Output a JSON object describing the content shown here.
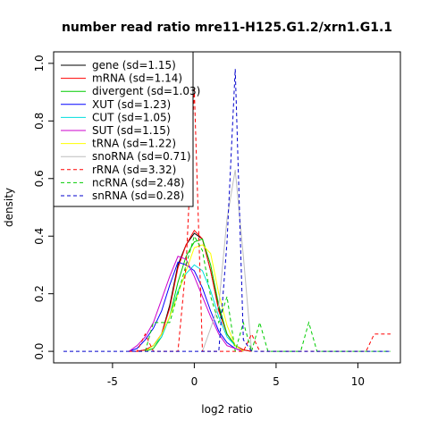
{
  "chart_data": {
    "type": "line",
    "title": "number read ratio mre11-H125.G1.2/xrn1.G1.1",
    "xlabel": "log2 ratio",
    "ylabel": "density",
    "xlim": [
      -8.6,
      12.6
    ],
    "ylim": [
      -0.04,
      1.04
    ],
    "x_ticks": [
      -5,
      0,
      5,
      10
    ],
    "x_tick_labels": [
      "-5",
      "0",
      "5",
      "10"
    ],
    "y_ticks": [
      0.0,
      0.2,
      0.4,
      0.6,
      0.8,
      1.0
    ],
    "y_tick_labels": [
      "0.0",
      "0.2",
      "0.4",
      "0.6",
      "0.8",
      "1.0"
    ],
    "grid": false,
    "legend_position": "top-left",
    "series": [
      {
        "name": "gene (sd=1.15)",
        "color": "#000000",
        "dash": "solid",
        "x": [
          -3.5,
          -3,
          -2.5,
          -2,
          -1.5,
          -1,
          -0.5,
          0,
          0.5,
          1,
          1.5,
          2,
          2.5,
          3,
          3.5
        ],
        "y": [
          0,
          0.005,
          0.02,
          0.06,
          0.16,
          0.3,
          0.37,
          0.41,
          0.39,
          0.28,
          0.15,
          0.06,
          0.02,
          0.005,
          0
        ]
      },
      {
        "name": "mRNA (sd=1.14)",
        "color": "#ff0000",
        "dash": "solid",
        "x": [
          -3.5,
          -3,
          -2.5,
          -2,
          -1.5,
          -1,
          -0.5,
          0,
          0.5,
          1,
          1.5,
          2,
          2.5,
          3,
          3.5
        ],
        "y": [
          0,
          0.005,
          0.02,
          0.06,
          0.15,
          0.29,
          0.37,
          0.42,
          0.39,
          0.28,
          0.14,
          0.06,
          0.02,
          0.005,
          0
        ]
      },
      {
        "name": "divergent (sd=1.03)",
        "color": "#00cc00",
        "dash": "solid",
        "x": [
          -3,
          -2.5,
          -2,
          -1.5,
          -1,
          -0.5,
          0,
          0.5,
          1,
          1.5,
          2,
          2.5,
          3
        ],
        "y": [
          0,
          0.01,
          0.05,
          0.12,
          0.24,
          0.33,
          0.38,
          0.39,
          0.3,
          0.16,
          0.06,
          0.02,
          0
        ]
      },
      {
        "name": "XUT (sd=1.23)",
        "color": "#0000ff",
        "dash": "solid",
        "x": [
          -4,
          -3.5,
          -3,
          -2.5,
          -2,
          -1.5,
          -1,
          -0.5,
          0,
          0.5,
          1,
          1.5,
          2,
          2.5,
          3
        ],
        "y": [
          0,
          0.01,
          0.04,
          0.08,
          0.14,
          0.23,
          0.31,
          0.3,
          0.28,
          0.22,
          0.14,
          0.07,
          0.03,
          0.01,
          0
        ]
      },
      {
        "name": "CUT (sd=1.05)",
        "color": "#00dddd",
        "dash": "solid",
        "x": [
          -3,
          -2.5,
          -2,
          -1.5,
          -1,
          -0.5,
          0,
          0.5,
          1,
          1.5,
          2,
          2.5,
          3
        ],
        "y": [
          0,
          0.02,
          0.05,
          0.12,
          0.21,
          0.27,
          0.3,
          0.28,
          0.21,
          0.12,
          0.05,
          0.02,
          0
        ]
      },
      {
        "name": "SUT (sd=1.15)",
        "color": "#cc00cc",
        "dash": "solid",
        "x": [
          -4,
          -3.5,
          -3,
          -2.5,
          -2,
          -1.5,
          -1,
          -0.5,
          0,
          0.5,
          1,
          1.5,
          2,
          2.5,
          3
        ],
        "y": [
          0,
          0.02,
          0.05,
          0.1,
          0.18,
          0.26,
          0.33,
          0.32,
          0.26,
          0.19,
          0.12,
          0.06,
          0.02,
          0.01,
          0
        ]
      },
      {
        "name": "tRNA (sd=1.22)",
        "color": "#ffff00",
        "dash": "solid",
        "x": [
          -3,
          -2.5,
          -2,
          -1.5,
          -1,
          -0.5,
          0,
          0.5,
          1,
          1.5,
          2,
          2.5,
          3
        ],
        "y": [
          0,
          0.02,
          0.06,
          0.12,
          0.2,
          0.28,
          0.36,
          0.37,
          0.34,
          0.2,
          0.09,
          0.02,
          0
        ]
      },
      {
        "name": "snoRNA (sd=0.71)",
        "color": "#bebebe",
        "dash": "solid",
        "x": [
          0.5,
          1,
          1.5,
          2,
          2.5,
          3,
          3.5
        ],
        "y": [
          0,
          0.08,
          0.16,
          0.46,
          0.63,
          0.33,
          0
        ]
      },
      {
        "name": "rRNA (sd=3.32)",
        "color": "#ff0000",
        "dash": "dashed",
        "x": [
          -4,
          -3.5,
          -3,
          -2.5,
          -2,
          -1.5,
          -1,
          -0.5,
          0,
          0.5,
          1,
          1.5,
          2,
          2.5,
          3,
          3.5,
          4,
          4.5,
          5,
          5.5,
          6,
          6.5,
          7,
          7.5,
          8,
          8.5,
          9,
          9.5,
          10,
          10.5,
          11,
          11.5,
          12
        ],
        "y": [
          0,
          0,
          0.06,
          0,
          0,
          0,
          0,
          0.3,
          0.91,
          0,
          0,
          0,
          0,
          0,
          0,
          0.06,
          0,
          0,
          0,
          0,
          0,
          0,
          0,
          0,
          0,
          0,
          0,
          0,
          0,
          0,
          0.06,
          0.06,
          0.06
        ]
      },
      {
        "name": "ncRNA (sd=2.48)",
        "color": "#00cc00",
        "dash": "dashed",
        "x": [
          -3,
          -2.5,
          -2,
          -1.5,
          -1,
          -0.5,
          0,
          0.5,
          1,
          1.5,
          2,
          2.5,
          3,
          3.5,
          4,
          4.5,
          5,
          5.5,
          6,
          6.5,
          7,
          7.5,
          8,
          8.5,
          9,
          9.5,
          10,
          10.5,
          11,
          11.5,
          12
        ],
        "y": [
          0,
          0.1,
          0.1,
          0.1,
          0.2,
          0.3,
          0.4,
          0.35,
          0.19,
          0.1,
          0.19,
          0,
          0.1,
          0,
          0.1,
          0,
          0,
          0,
          0,
          0,
          0.1,
          0,
          0,
          0,
          0,
          0,
          0,
          0,
          0,
          0,
          0
        ]
      },
      {
        "name": "snRNA (sd=0.28)",
        "color": "#0000cc",
        "dash": "dashed",
        "x": [
          -8,
          -7,
          -6,
          -5,
          -4,
          -3,
          -2,
          -1,
          0,
          1,
          1.5,
          2,
          2.5,
          3,
          3.5,
          4,
          5,
          6,
          7,
          8,
          9,
          10,
          11,
          12
        ],
        "y": [
          0,
          0,
          0,
          0,
          0,
          0,
          0,
          0,
          0,
          0,
          0,
          0.38,
          0.98,
          0.04,
          0,
          0,
          0,
          0,
          0,
          0,
          0,
          0,
          0,
          0
        ]
      }
    ]
  }
}
